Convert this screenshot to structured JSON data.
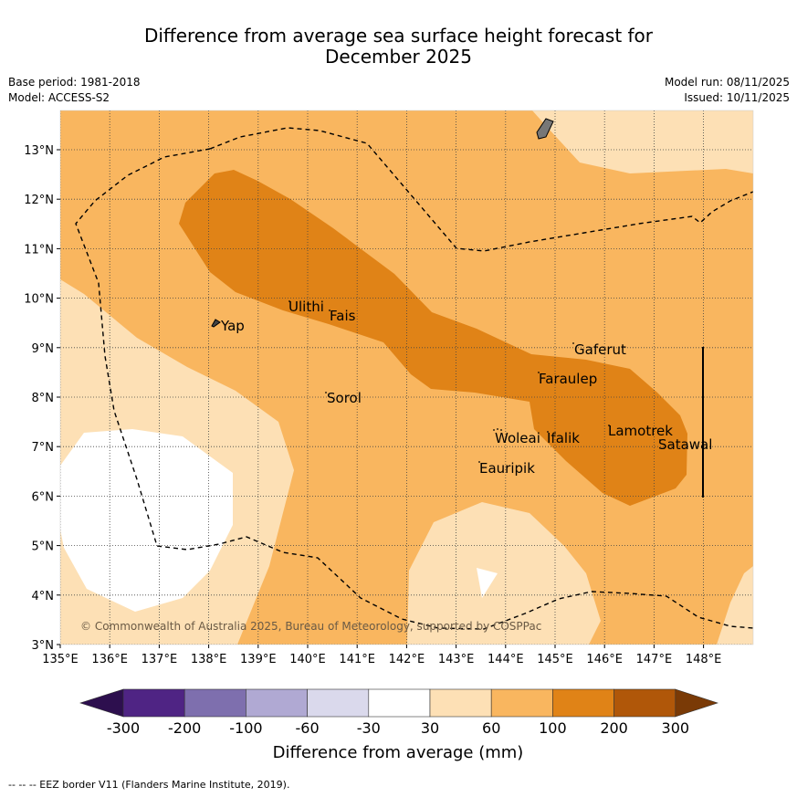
{
  "title_line1": "Difference from average sea surface height forecast for",
  "title_line2": "December 2025",
  "meta": {
    "base_period": "Base period: 1981-2018",
    "model": "Model: ACCESS-S2",
    "model_run": "Model run: 08/11/2025",
    "issued": "Issued: 10/11/2025"
  },
  "axes": {
    "lon_ticks": [
      "135°E",
      "136°E",
      "137°E",
      "138°E",
      "139°E",
      "140°E",
      "141°E",
      "142°E",
      "143°E",
      "144°E",
      "145°E",
      "146°E",
      "147°E",
      "148°E"
    ],
    "lat_ticks": [
      "3°N",
      "4°N",
      "5°N",
      "6°N",
      "7°N",
      "8°N",
      "9°N",
      "10°N",
      "11°N",
      "12°N",
      "13°N"
    ]
  },
  "places": {
    "yap": "Yap",
    "ulithi": "Ulithi",
    "fais": "Fais",
    "sorol": "Sorol",
    "gaferut": "Gaferut",
    "faraulep": "Faraulep",
    "woleai": "Woleai",
    "ifalik": "Ifalik",
    "eauripik": "Eauripik",
    "lamotrek": "Lamotrek",
    "satawal": "Satawal"
  },
  "copyright": "© Commonwealth of Australia 2025, Bureau of Meteorology, supported by COSPPac",
  "legend": {
    "title": "Difference from average (mm)",
    "labels": [
      "-300",
      "-200",
      "-100",
      "-60",
      "-30",
      "30",
      "60",
      "100",
      "200",
      "300"
    ],
    "colors": [
      "#2d0f4e",
      "#4f2484",
      "#7e6fae",
      "#b0a9d3",
      "#dad9ec",
      "#ffffff",
      "#fde0b5",
      "#f9b65f",
      "#e08317",
      "#b05709",
      "#7a3a06"
    ]
  },
  "footnote": "--  --  -- EEZ border V11 (Flanders Marine Institute, 2019)."
}
